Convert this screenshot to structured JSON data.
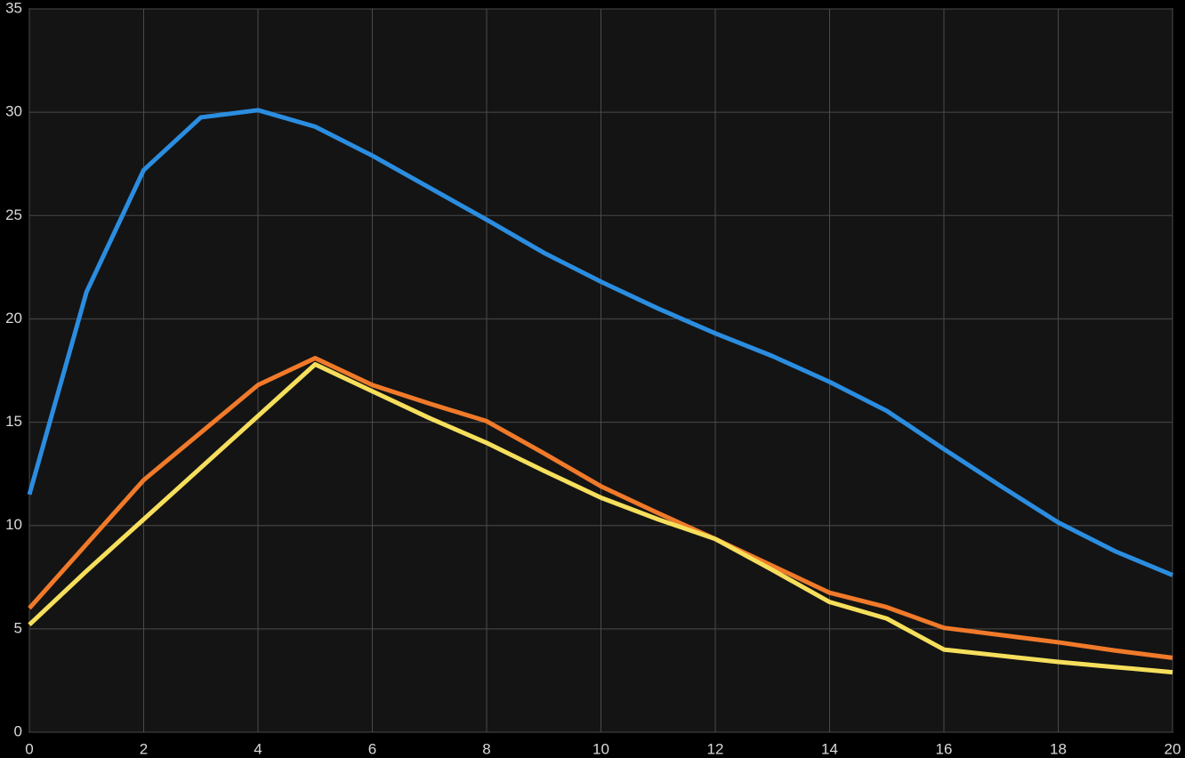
{
  "chart_data": {
    "type": "line",
    "x": [
      0,
      1,
      2,
      3,
      4,
      5,
      6,
      7,
      8,
      9,
      10,
      11,
      12,
      13,
      14,
      15,
      16,
      17,
      18,
      19,
      20
    ],
    "series": [
      {
        "color": "#2b8de0",
        "values": [
          11.5,
          21.3,
          27.2,
          29.75,
          30.1,
          29.3,
          27.9,
          26.35,
          24.8,
          23.2,
          21.8,
          20.5,
          19.3,
          18.2,
          16.95,
          15.55,
          13.7,
          11.9,
          10.15,
          8.75,
          7.6
        ]
      },
      {
        "color": "#f07a2a",
        "values": [
          6.0,
          9.1,
          12.2,
          14.5,
          16.8,
          18.1,
          16.8,
          15.9,
          15.05,
          13.5,
          11.9,
          10.6,
          9.35,
          8.05,
          6.75,
          6.05,
          5.05,
          4.7,
          4.35,
          3.95,
          3.6
        ]
      },
      {
        "color": "#f6df5c",
        "values": [
          5.2,
          7.8,
          10.3,
          12.8,
          15.3,
          17.8,
          16.5,
          15.2,
          14.0,
          12.65,
          11.35,
          10.3,
          9.35,
          7.85,
          6.3,
          5.5,
          4.0,
          3.7,
          3.4,
          3.15,
          2.9
        ]
      }
    ],
    "xlim": [
      0,
      20
    ],
    "xticks": [
      0,
      2,
      4,
      6,
      8,
      10,
      12,
      14,
      16,
      18,
      20
    ],
    "ylim": [
      0,
      35
    ],
    "yticks": [
      0,
      5,
      10,
      15,
      20,
      25,
      30,
      35
    ],
    "grid": true
  }
}
